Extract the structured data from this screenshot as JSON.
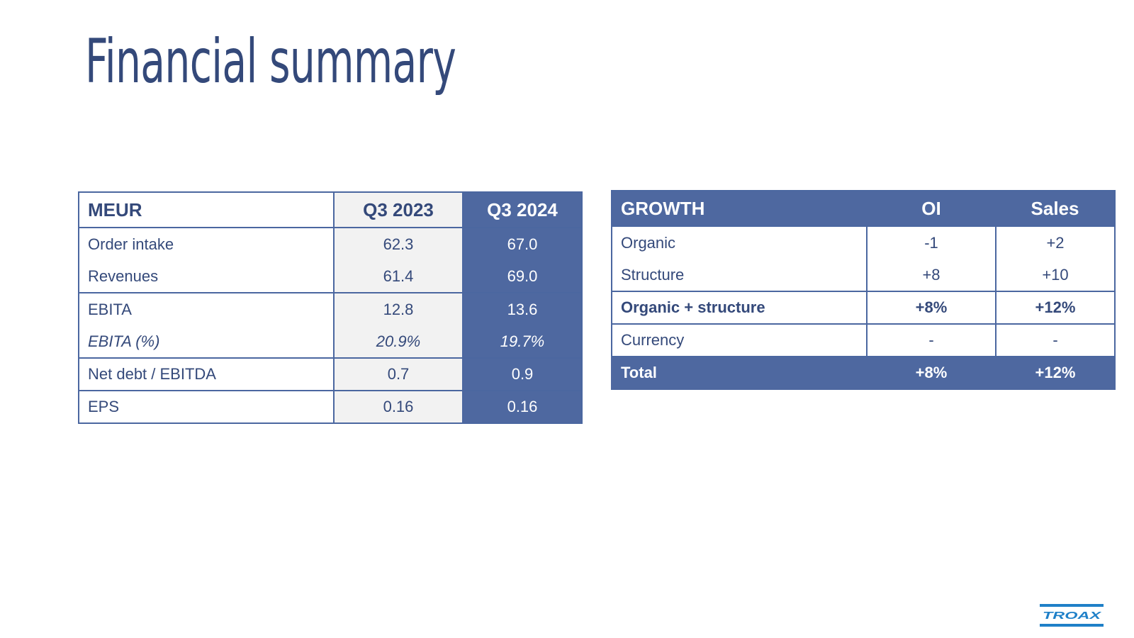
{
  "page": {
    "title": "Financial summary"
  },
  "summary_table": {
    "header": {
      "label": "MEUR",
      "prev": "Q3 2023",
      "curr": "Q3 2024"
    },
    "rows": [
      {
        "label": "Order intake",
        "prev": "62.3",
        "curr": "67.0"
      },
      {
        "label": "Revenues",
        "prev": "61.4",
        "curr": "69.0"
      },
      {
        "label": "EBITA",
        "prev": "12.8",
        "curr": "13.6"
      },
      {
        "label": "EBITA (%)",
        "prev": "20.9%",
        "curr": "19.7%"
      },
      {
        "label": "Net debt / EBITDA",
        "prev": "0.7",
        "curr": "0.9"
      },
      {
        "label": "EPS",
        "prev": "0.16",
        "curr": "0.16"
      }
    ]
  },
  "growth_table": {
    "header": {
      "label": "GROWTH",
      "oi": "OI",
      "sales": "Sales"
    },
    "rows": [
      {
        "label": "Organic",
        "oi": "-1",
        "sales": "+2"
      },
      {
        "label": "Structure",
        "oi": "+8",
        "sales": "+10"
      },
      {
        "label": "Organic + structure",
        "oi": "+8%",
        "sales": "+12%"
      },
      {
        "label": "Currency",
        "oi": "-",
        "sales": "-"
      },
      {
        "label": "Total",
        "oi": "+8%",
        "sales": "+12%"
      }
    ]
  },
  "logo": {
    "text": "TROAX",
    "color": "#1f80c8"
  },
  "colors": {
    "navy": "#34497a",
    "table_blue": "#4e68a0",
    "light_gray": "#f2f2f2"
  }
}
